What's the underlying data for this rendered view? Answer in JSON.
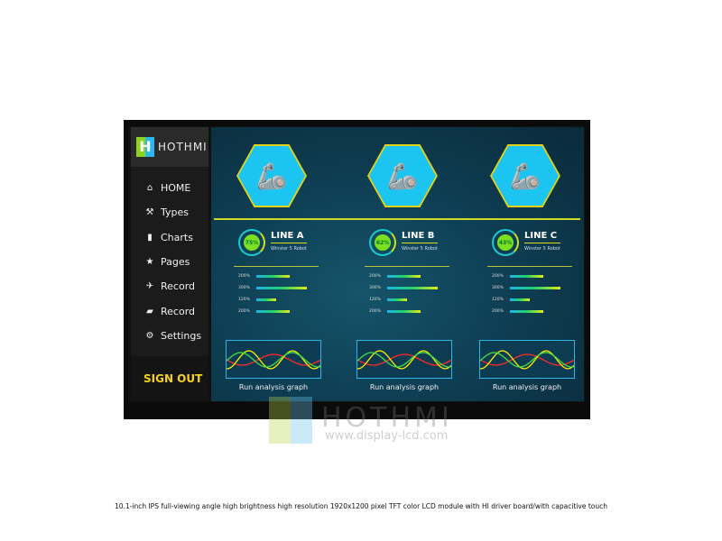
{
  "brand": {
    "logo_letter": "H",
    "name": "HOTHMI"
  },
  "sidebar": {
    "items": [
      {
        "icon": "home-icon",
        "glyph": "⌂",
        "label": "HOME"
      },
      {
        "icon": "robot-arm-icon",
        "glyph": "⚒",
        "label": "Types"
      },
      {
        "icon": "bar-chart-icon",
        "glyph": "▮",
        "label": "Charts"
      },
      {
        "icon": "star-icon",
        "glyph": "★",
        "label": "Pages"
      },
      {
        "icon": "pin-icon",
        "glyph": "✈",
        "label": "Record"
      },
      {
        "icon": "folder-icon",
        "glyph": "▰",
        "label": "Record"
      },
      {
        "icon": "gear-icon",
        "glyph": "⚙",
        "label": "Settings"
      }
    ],
    "sign_out": "SIGN OUT"
  },
  "lines": [
    {
      "title": "LINE A",
      "subtitle": "Winster 5 Robot",
      "percent": "75%",
      "bars": [
        {
          "label": "200%",
          "value": 200
        },
        {
          "label": "300%",
          "value": 300
        },
        {
          "label": "120%",
          "value": 120
        },
        {
          "label": "200%",
          "value": 200
        }
      ],
      "graph_caption": "Run analysis graph"
    },
    {
      "title": "LINE B",
      "subtitle": "Winster 5 Robot",
      "percent": "62%",
      "bars": [
        {
          "label": "200%",
          "value": 200
        },
        {
          "label": "300%",
          "value": 300
        },
        {
          "label": "120%",
          "value": 120
        },
        {
          "label": "200%",
          "value": 200
        }
      ],
      "graph_caption": "Run analysis graph"
    },
    {
      "title": "LINE C",
      "subtitle": "Winster 5 Robot",
      "percent": "43%",
      "bars": [
        {
          "label": "200%",
          "value": 200
        },
        {
          "label": "300%",
          "value": 300
        },
        {
          "label": "120%",
          "value": 120
        },
        {
          "label": "200%",
          "value": 200
        }
      ],
      "graph_caption": "Run analysis graph"
    }
  ],
  "colors": {
    "accent": "#f5d416",
    "bar_start": "#1cb3e8",
    "bar_end": "#e7ec14",
    "graph_red": "#ff2a2a",
    "graph_yellow": "#ffee00",
    "graph_green": "#44dd44"
  },
  "watermark": {
    "name": "HOTHMI",
    "url": "www.display-lcd.com"
  },
  "caption": "10.1-inch IPS full-viewing angle high brightness high resolution 1920x1200 pixel TFT color LCD module with HI driver board/with capacitive touch"
}
